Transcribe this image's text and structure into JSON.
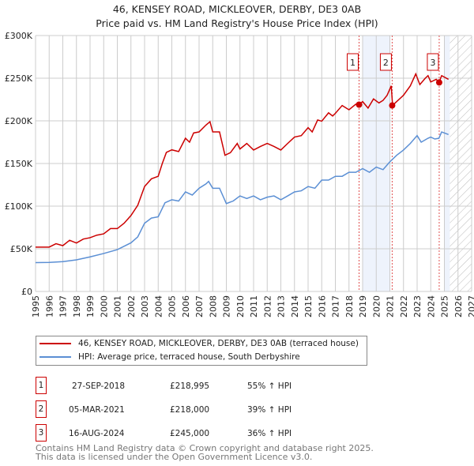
{
  "chart_data": {
    "type": "line",
    "title": "46, KENSEY ROAD, MICKLEOVER, DERBY, DE3 0AB",
    "subtitle": "Price paid vs. HM Land Registry's House Price Index (HPI)",
    "xlim": [
      1995,
      2027
    ],
    "ylim": [
      0,
      300000
    ],
    "x_ticks": [
      "1995",
      "1996",
      "1997",
      "1998",
      "1999",
      "2000",
      "2001",
      "2002",
      "2003",
      "2004",
      "2005",
      "2006",
      "2007",
      "2008",
      "2009",
      "2010",
      "2011",
      "2012",
      "2013",
      "2014",
      "2015",
      "2016",
      "2017",
      "2018",
      "2019",
      "2020",
      "2021",
      "2022",
      "2023",
      "2024",
      "2025",
      "2026",
      "2027"
    ],
    "y_ticks": [
      {
        "v": 0,
        "label": "£0"
      },
      {
        "v": 50000,
        "label": "£50K"
      },
      {
        "v": 100000,
        "label": "£100K"
      },
      {
        "v": 150000,
        "label": "£150K"
      },
      {
        "v": 200000,
        "label": "£200K"
      },
      {
        "v": 250000,
        "label": "£250K"
      },
      {
        "v": 300000,
        "label": "£300K"
      }
    ],
    "shaded_ranges": [
      [
        2019,
        2021
      ],
      [
        2025,
        2025.4
      ]
    ],
    "forecast_hatch_from": 2025.4,
    "series": [
      {
        "name": "46, KENSEY ROAD, MICKLEOVER, DERBY, DE3 0AB (terraced house)",
        "color": "#cc0000",
        "x": [
          1995,
          1996,
          1996.5,
          1997,
          1997.5,
          1998,
          1998.5,
          1999,
          1999.5,
          2000,
          2000.5,
          2001,
          2001.5,
          2002,
          2002.5,
          2003,
          2003.5,
          2004,
          2004.3,
          2004.6,
          2005,
          2005.5,
          2006,
          2006.3,
          2006.6,
          2007,
          2007.5,
          2007.8,
          2008,
          2008.5,
          2008.9,
          2009.3,
          2009.8,
          2010,
          2010.5,
          2011,
          2011.5,
          2012,
          2012.5,
          2013,
          2013.5,
          2014,
          2014.5,
          2015,
          2015.3,
          2015.7,
          2016,
          2016.5,
          2016.8,
          2017,
          2017.5,
          2018,
          2018.5,
          2018.75,
          2019,
          2019.4,
          2019.8,
          2020.2,
          2020.5,
          2020.8,
          2021.1,
          2021.2,
          2021.5,
          2022,
          2022.5,
          2022.9,
          2023.2,
          2023.6,
          2023.8,
          2024,
          2024.4,
          2024.6,
          2024.8,
          2025.3
        ],
        "y": [
          52000,
          52000,
          56000,
          53700,
          60000,
          56800,
          61400,
          63000,
          66000,
          67500,
          73700,
          73700,
          80000,
          89000,
          101000,
          123000,
          132000,
          135000,
          150000,
          163000,
          166000,
          164000,
          179600,
          175000,
          185800,
          187000,
          195000,
          199000,
          187000,
          187000,
          159700,
          162700,
          173500,
          167000,
          173500,
          165800,
          170000,
          173500,
          170000,
          165800,
          173500,
          181000,
          182700,
          192000,
          187000,
          201000,
          199600,
          209400,
          205700,
          208800,
          218000,
          213000,
          219500,
          219000,
          222600,
          215000,
          225700,
          221000,
          224000,
          230000,
          241000,
          218000,
          222600,
          230000,
          241000,
          255000,
          242500,
          250000,
          253000,
          245600,
          248700,
          245000,
          253000,
          248700
        ]
      },
      {
        "name": "HPI: Average price, terraced house, South Derbyshire",
        "color": "#5b8fd4",
        "x": [
          1995,
          1996,
          1997,
          1998,
          1999,
          2000,
          2001,
          2002,
          2002.5,
          2003,
          2003.5,
          2004,
          2004.5,
          2005,
          2005.5,
          2006,
          2006.5,
          2007,
          2007.5,
          2007.7,
          2008,
          2008.5,
          2009,
          2009.5,
          2010,
          2010.5,
          2011,
          2011.5,
          2012,
          2012.5,
          2013,
          2013.5,
          2014,
          2014.5,
          2015,
          2015.5,
          2016,
          2016.5,
          2017,
          2017.5,
          2018,
          2018.5,
          2019,
          2019.5,
          2020,
          2020.5,
          2021,
          2021.5,
          2022,
          2022.5,
          2023,
          2023.3,
          2023.8,
          2024,
          2024.3,
          2024.6,
          2024.8,
          2025.3
        ],
        "y": [
          33800,
          34000,
          35000,
          37000,
          40500,
          44500,
          49000,
          57000,
          64000,
          80000,
          86000,
          87500,
          104000,
          107500,
          106000,
          116700,
          113000,
          121000,
          126000,
          129000,
          121000,
          121000,
          103000,
          106000,
          112000,
          109000,
          112000,
          107500,
          110500,
          112000,
          107500,
          112000,
          116700,
          118000,
          123000,
          121000,
          130500,
          130500,
          135000,
          135000,
          139700,
          139700,
          144000,
          139700,
          145800,
          142800,
          152000,
          159700,
          165800,
          173500,
          182700,
          175000,
          179600,
          181000,
          178700,
          179600,
          187000,
          184000
        ]
      }
    ],
    "sales": [
      {
        "n": "1",
        "x": 2018.74,
        "y": 218995,
        "date": "27-SEP-2018",
        "price": "£218,995",
        "hpi": "55% ↑ HPI"
      },
      {
        "n": "2",
        "x": 2021.17,
        "y": 218000,
        "date": "05-MAR-2021",
        "price": "£218,000",
        "hpi": "39% ↑ HPI"
      },
      {
        "n": "3",
        "x": 2024.62,
        "y": 245000,
        "date": "16-AUG-2024",
        "price": "£245,000",
        "hpi": "36% ↑ HPI"
      }
    ]
  },
  "footer": {
    "line1": "Contains HM Land Registry data © Crown copyright and database right 2025.",
    "line2": "This data is licensed under the Open Government Licence v3.0."
  }
}
